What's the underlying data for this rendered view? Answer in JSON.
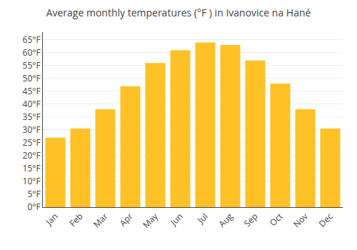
{
  "chart_data": {
    "type": "bar",
    "title": "Average monthly temperatures (°F ) in Ivanovice na Hané",
    "categories": [
      "Jan",
      "Feb",
      "Mar",
      "Apr",
      "May",
      "Jun",
      "Jul",
      "Aug",
      "Sep",
      "Oct",
      "Nov",
      "Dec"
    ],
    "values": [
      27,
      30.5,
      38,
      47,
      56,
      61,
      64,
      63,
      57,
      48,
      38,
      30.5
    ],
    "color": "#FFC125",
    "ylim": [
      0,
      68
    ],
    "yticks": [
      {
        "value": 0,
        "label": "0°F"
      },
      {
        "value": 5,
        "label": "5°F"
      },
      {
        "value": 10,
        "label": "10°F"
      },
      {
        "value": 15,
        "label": "15°F"
      },
      {
        "value": 20,
        "label": "20°F"
      },
      {
        "value": 25,
        "label": "25°F"
      },
      {
        "value": 30,
        "label": "30°F"
      },
      {
        "value": 35,
        "label": "35°F"
      },
      {
        "value": 40,
        "label": "40°F"
      },
      {
        "value": 45,
        "label": "45°F"
      },
      {
        "value": 50,
        "label": "50°F"
      },
      {
        "value": 55,
        "label": "55°F"
      },
      {
        "value": 60,
        "label": "60°F"
      },
      {
        "value": 65,
        "label": "65°F"
      }
    ],
    "grid": true
  }
}
